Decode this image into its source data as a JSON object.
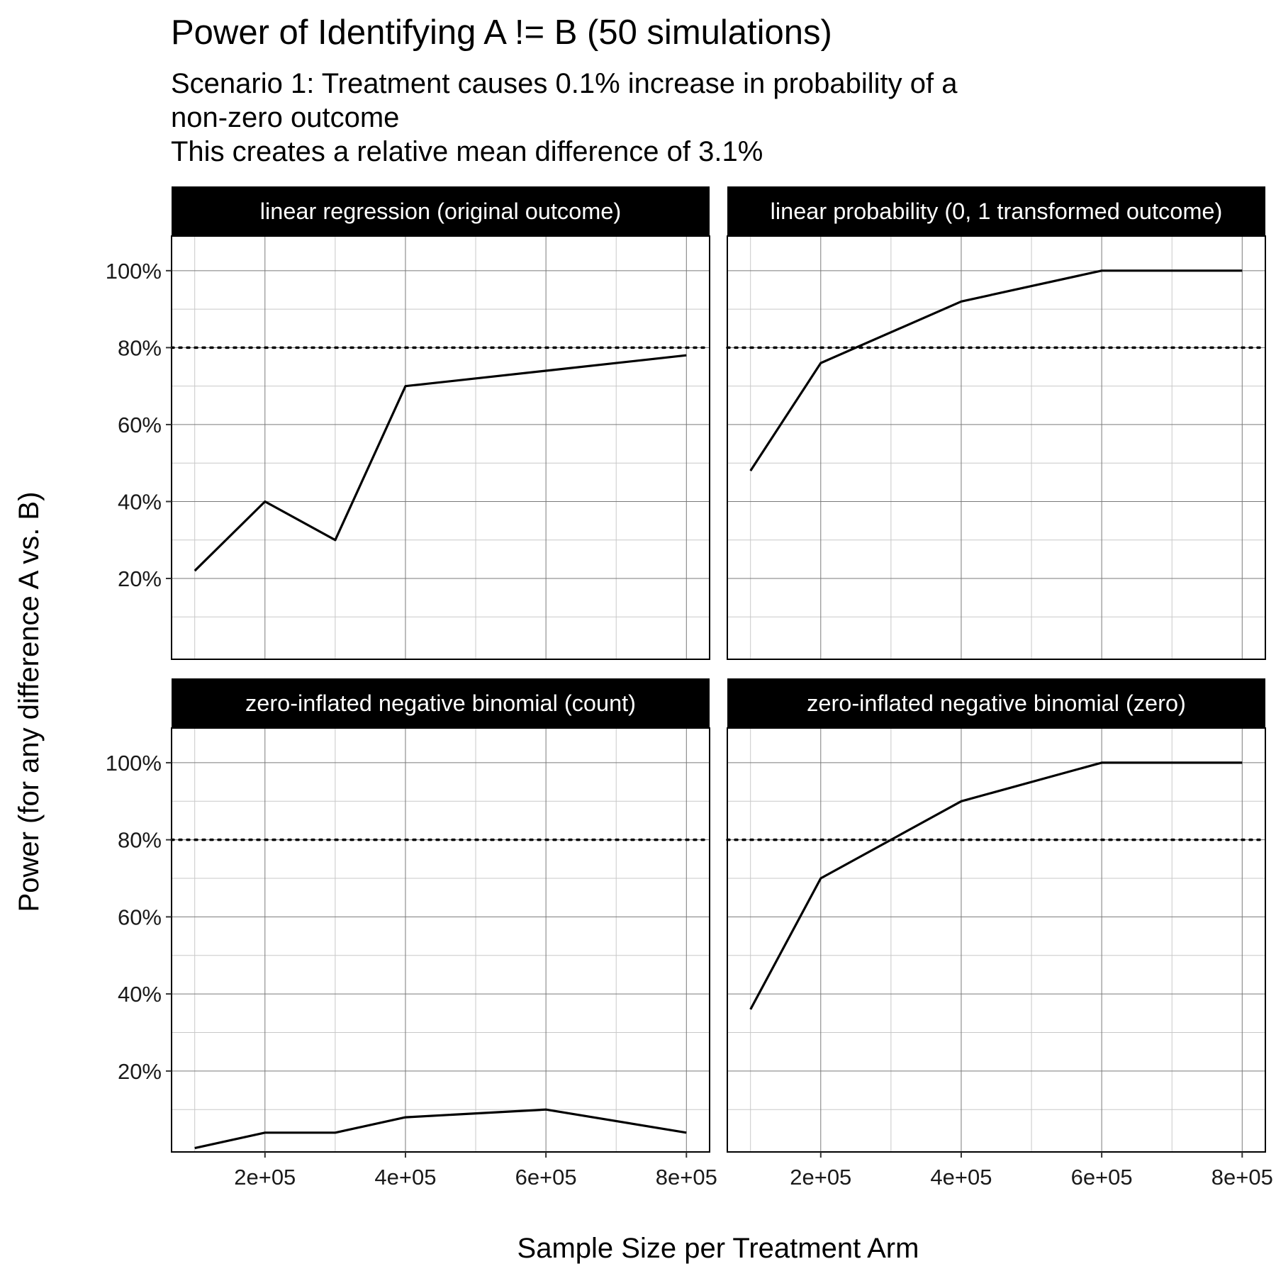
{
  "chart_data": {
    "type": "line",
    "title": "Power of Identifying A != B (50 simulations)",
    "subtitle_lines": [
      "Scenario 1: Treatment causes 0.1% increase in probability of a",
      "non-zero outcome",
      "This creates a relative mean difference of 3.1%"
    ],
    "xlabel": "Sample Size per Treatment Arm",
    "ylabel": "Power (for any difference A vs. B)",
    "x_ticks": [
      200000,
      400000,
      600000,
      800000
    ],
    "x_tick_labels": [
      "2e+05",
      "4e+05",
      "6e+05",
      "8e+05"
    ],
    "y_ticks": [
      0.2,
      0.4,
      0.6,
      0.8,
      1.0
    ],
    "y_tick_labels": [
      "20%",
      "40%",
      "60%",
      "80%",
      "100%"
    ],
    "xlim": [
      67000,
      833000
    ],
    "ylim": [
      -0.01,
      1.09
    ],
    "reference_line": {
      "y": 0.8,
      "style": "dotted"
    },
    "grid": true,
    "panels": [
      {
        "label": "linear regression (original outcome)",
        "x": [
          100000,
          200000,
          300000,
          400000,
          600000,
          800000
        ],
        "y": [
          0.22,
          0.4,
          0.3,
          0.7,
          0.74,
          0.78
        ]
      },
      {
        "label": "linear probability (0, 1 transformed outcome)",
        "x": [
          100000,
          200000,
          400000,
          600000,
          800000
        ],
        "y": [
          0.48,
          0.76,
          0.92,
          1.0,
          1.0
        ]
      },
      {
        "label": "zero-inflated negative binomial (count)",
        "x": [
          100000,
          200000,
          300000,
          400000,
          600000,
          800000
        ],
        "y": [
          0.0,
          0.04,
          0.04,
          0.08,
          0.1,
          0.04
        ]
      },
      {
        "label": "zero-inflated negative binomial (zero)",
        "x": [
          100000,
          200000,
          400000,
          600000,
          800000
        ],
        "y": [
          0.36,
          0.7,
          0.9,
          1.0,
          1.0
        ]
      }
    ]
  },
  "colors": {
    "line": "#000000",
    "strip_background": "#000000",
    "strip_text": "#ffffff",
    "grid_major": "#7a7a7a",
    "grid_minor": "#c8c8c8",
    "panel_border": "#000000"
  }
}
